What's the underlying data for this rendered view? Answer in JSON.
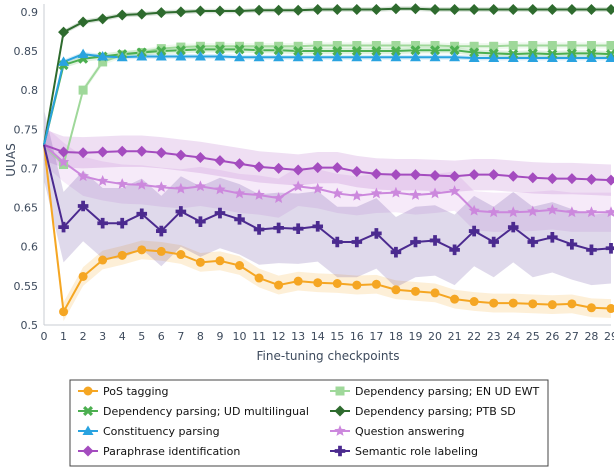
{
  "chart_data": {
    "type": "line",
    "title": "",
    "xlabel": "Fine-tuning checkpoints",
    "ylabel": "UUAS",
    "xlim": [
      0,
      29
    ],
    "ylim": [
      0.5,
      0.91
    ],
    "x": [
      0,
      1,
      2,
      3,
      4,
      5,
      6,
      7,
      8,
      9,
      10,
      11,
      12,
      13,
      14,
      15,
      16,
      17,
      18,
      19,
      20,
      21,
      22,
      23,
      24,
      25,
      26,
      27,
      28,
      29
    ],
    "x_ticks": [
      "0",
      "1",
      "2",
      "3",
      "4",
      "5",
      "6",
      "7",
      "8",
      "9",
      "10",
      "11",
      "12",
      "13",
      "14",
      "15",
      "16",
      "17",
      "18",
      "19",
      "20",
      "21",
      "22",
      "23",
      "24",
      "25",
      "26",
      "27",
      "28",
      "29"
    ],
    "y_ticks": [
      0.5,
      0.55,
      0.6,
      0.65,
      0.7,
      0.75,
      0.8,
      0.85,
      0.9
    ],
    "y_tick_labels": [
      "0.5",
      "0.55",
      "0.6",
      "0.65",
      "0.7",
      "0.75",
      "0.8",
      "0.85",
      "0.9"
    ],
    "grid": false,
    "legend_position": "bottom",
    "series": [
      {
        "name": "PoS tagging",
        "color": "#f5a623",
        "marker": "circle",
        "values": [
          0.73,
          0.517,
          0.562,
          0.583,
          0.589,
          0.596,
          0.594,
          0.59,
          0.58,
          0.582,
          0.576,
          0.56,
          0.551,
          0.556,
          0.554,
          0.553,
          0.551,
          0.552,
          0.545,
          0.543,
          0.541,
          0.533,
          0.53,
          0.528,
          0.528,
          0.527,
          0.526,
          0.527,
          0.522,
          0.521
        ],
        "band": 0.012
      },
      {
        "name": "Dependency parsing; EN UD EWT",
        "color": "#9fd89a",
        "marker": "square",
        "values": [
          0.73,
          0.705,
          0.8,
          0.836,
          0.845,
          0.848,
          0.853,
          0.855,
          0.856,
          0.856,
          0.856,
          0.856,
          0.856,
          0.856,
          0.857,
          0.857,
          0.857,
          0.857,
          0.857,
          0.857,
          0.857,
          0.856,
          0.856,
          0.856,
          0.857,
          0.857,
          0.857,
          0.857,
          0.857,
          0.857
        ],
        "band": 0.004
      },
      {
        "name": "Dependency parsing; UD multilingual",
        "color": "#4caf50",
        "marker": "x",
        "values": [
          0.73,
          0.832,
          0.84,
          0.843,
          0.846,
          0.848,
          0.85,
          0.851,
          0.852,
          0.852,
          0.852,
          0.851,
          0.851,
          0.85,
          0.85,
          0.85,
          0.85,
          0.85,
          0.85,
          0.851,
          0.851,
          0.851,
          0.848,
          0.847,
          0.846,
          0.847,
          0.846,
          0.847,
          0.847,
          0.846
        ],
        "band": 0.004
      },
      {
        "name": "Dependency parsing; PTB SD",
        "color": "#2e6b2e",
        "marker": "diamond",
        "values": [
          0.73,
          0.874,
          0.887,
          0.891,
          0.896,
          0.897,
          0.899,
          0.9,
          0.901,
          0.901,
          0.901,
          0.902,
          0.902,
          0.902,
          0.903,
          0.903,
          0.903,
          0.903,
          0.904,
          0.904,
          0.903,
          0.903,
          0.903,
          0.903,
          0.903,
          0.903,
          0.903,
          0.903,
          0.903,
          0.903
        ],
        "band": 0.003
      },
      {
        "name": "Constituency parsing",
        "color": "#29a3e0",
        "marker": "triangle-up",
        "values": [
          0.73,
          0.836,
          0.846,
          0.843,
          0.842,
          0.843,
          0.843,
          0.843,
          0.843,
          0.843,
          0.842,
          0.842,
          0.842,
          0.842,
          0.842,
          0.842,
          0.842,
          0.842,
          0.842,
          0.842,
          0.842,
          0.842,
          0.841,
          0.841,
          0.841,
          0.841,
          0.841,
          0.841,
          0.841,
          0.841
        ],
        "band": 0.003
      },
      {
        "name": "Question answering",
        "color": "#cc88dd",
        "marker": "star",
        "values": [
          0.73,
          0.708,
          0.69,
          0.684,
          0.68,
          0.679,
          0.676,
          0.674,
          0.677,
          0.673,
          0.668,
          0.666,
          0.662,
          0.677,
          0.674,
          0.668,
          0.665,
          0.668,
          0.669,
          0.666,
          0.668,
          0.671,
          0.646,
          0.644,
          0.644,
          0.645,
          0.647,
          0.644,
          0.644,
          0.644
        ],
        "band": 0.025
      },
      {
        "name": "Paraphrase identification",
        "color": "#a44cbf",
        "marker": "diamond",
        "values": [
          0.73,
          0.721,
          0.72,
          0.721,
          0.722,
          0.722,
          0.72,
          0.717,
          0.714,
          0.71,
          0.706,
          0.702,
          0.7,
          0.698,
          0.701,
          0.701,
          0.696,
          0.693,
          0.692,
          0.692,
          0.691,
          0.69,
          0.692,
          0.692,
          0.69,
          0.688,
          0.687,
          0.687,
          0.686,
          0.685
        ],
        "band": 0.02
      },
      {
        "name": "Semantic role labeling",
        "color": "#4b2a8f",
        "marker": "cross",
        "values": [
          0.73,
          0.625,
          0.652,
          0.63,
          0.63,
          0.642,
          0.62,
          0.645,
          0.632,
          0.643,
          0.635,
          0.622,
          0.624,
          0.623,
          0.626,
          0.606,
          0.606,
          0.617,
          0.593,
          0.606,
          0.608,
          0.596,
          0.62,
          0.606,
          0.625,
          0.606,
          0.612,
          0.603,
          0.596,
          0.598
        ],
        "band": 0.045
      }
    ]
  }
}
